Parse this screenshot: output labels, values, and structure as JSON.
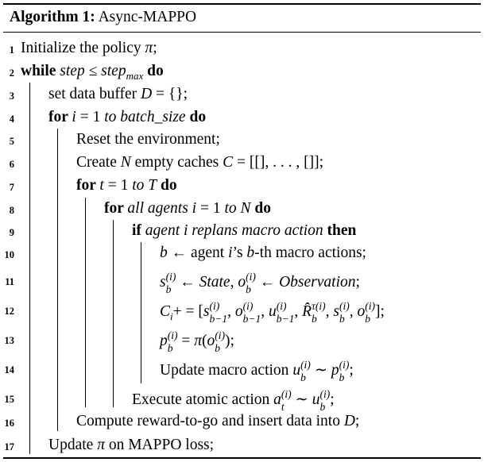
{
  "algorithm": {
    "label": "Algorithm 1:",
    "name": "Async-MAPPO"
  },
  "lines": [
    {
      "num": "1",
      "parts": [
        {
          "t": "Initialize the policy "
        },
        {
          "t": "π",
          "s": "it"
        },
        {
          "t": ";"
        }
      ]
    },
    {
      "num": "2",
      "parts": [
        {
          "t": "while ",
          "s": "kw"
        },
        {
          "t": "step ≤ step",
          "s": "it"
        },
        {
          "t": "max",
          "s": "sub-it"
        },
        {
          "t": " do",
          "s": "kw"
        }
      ]
    },
    {
      "num": "3",
      "parts": [
        {
          "t": "set data buffer "
        },
        {
          "t": "D",
          "s": "it"
        },
        {
          "t": " = {};"
        }
      ]
    },
    {
      "num": "4",
      "parts": [
        {
          "t": "for ",
          "s": "kw"
        },
        {
          "t": "i",
          "s": "it"
        },
        {
          "t": " = 1 "
        },
        {
          "t": "to batch_size",
          "s": "it"
        },
        {
          "t": " do",
          "s": "kw"
        }
      ]
    },
    {
      "num": "5",
      "parts": [
        {
          "t": "Reset the environment;"
        }
      ]
    },
    {
      "num": "6",
      "parts": [
        {
          "t": "Create "
        },
        {
          "t": "N",
          "s": "it"
        },
        {
          "t": " empty caches "
        },
        {
          "t": "C",
          "s": "it"
        },
        {
          "t": " = [[], . . . , []];"
        }
      ]
    },
    {
      "num": "7",
      "parts": [
        {
          "t": "for ",
          "s": "kw"
        },
        {
          "t": "t",
          "s": "it"
        },
        {
          "t": " = 1 "
        },
        {
          "t": "to T",
          "s": "it"
        },
        {
          "t": " do",
          "s": "kw"
        }
      ]
    },
    {
      "num": "8",
      "parts": [
        {
          "t": "for ",
          "s": "kw"
        },
        {
          "t": "all agents i",
          "s": "it"
        },
        {
          "t": " = 1 "
        },
        {
          "t": "to N",
          "s": "it"
        },
        {
          "t": " do",
          "s": "kw"
        }
      ]
    },
    {
      "num": "9",
      "parts": [
        {
          "t": "if ",
          "s": "kw"
        },
        {
          "t": "agent i replans macro action",
          "s": "it"
        },
        {
          "t": " then",
          "s": "kw"
        }
      ]
    },
    {
      "num": "10",
      "parts": [
        {
          "t": "b",
          "s": "it"
        },
        {
          "t": " ← agent "
        },
        {
          "t": "i",
          "s": "it"
        },
        {
          "t": "’s "
        },
        {
          "t": "b",
          "s": "it"
        },
        {
          "t": "-th macro actions;"
        }
      ]
    },
    {
      "num": "11",
      "parts": [
        {
          "t": "s",
          "s": "it"
        },
        {
          "st": [
            "(i)",
            "b"
          ]
        },
        {
          "t": " ← "
        },
        {
          "t": "State",
          "s": "it"
        },
        {
          "t": ", "
        },
        {
          "t": "o",
          "s": "it"
        },
        {
          "st": [
            "(i)",
            "b"
          ]
        },
        {
          "t": " ← "
        },
        {
          "t": "Observation",
          "s": "it"
        },
        {
          "t": ";"
        }
      ]
    },
    {
      "num": "12",
      "parts": [
        {
          "t": "C",
          "s": "it"
        },
        {
          "t": "i",
          "s": "sub-it"
        },
        {
          "t": "+ = ["
        },
        {
          "t": "s",
          "s": "it"
        },
        {
          "st": [
            "(i)",
            "b−1"
          ]
        },
        {
          "t": ", "
        },
        {
          "t": "o",
          "s": "it"
        },
        {
          "st": [
            "(i)",
            "b−1"
          ]
        },
        {
          "t": ", "
        },
        {
          "t": "u",
          "s": "it"
        },
        {
          "st": [
            "(i)",
            "b−1"
          ]
        },
        {
          "t": ", "
        },
        {
          "t": "R̂",
          "s": "it"
        },
        {
          "st": [
            "τ(i)",
            "b"
          ]
        },
        {
          "t": ", "
        },
        {
          "t": "s",
          "s": "it"
        },
        {
          "st": [
            "(i)",
            "b"
          ]
        },
        {
          "t": ", "
        },
        {
          "t": "o",
          "s": "it"
        },
        {
          "st": [
            "(i)",
            "b"
          ]
        },
        {
          "t": "];"
        }
      ]
    },
    {
      "num": "13",
      "parts": [
        {
          "t": "p",
          "s": "it"
        },
        {
          "st": [
            "(i)",
            "b"
          ]
        },
        {
          "t": " = "
        },
        {
          "t": "π",
          "s": "it"
        },
        {
          "t": "("
        },
        {
          "t": "o",
          "s": "it"
        },
        {
          "st": [
            "(i)",
            "b"
          ]
        },
        {
          "t": ");"
        }
      ]
    },
    {
      "num": "14",
      "parts": [
        {
          "t": "Update macro action "
        },
        {
          "t": "u",
          "s": "it"
        },
        {
          "st": [
            "(i)",
            "b"
          ]
        },
        {
          "t": " ∼ "
        },
        {
          "t": "p",
          "s": "it"
        },
        {
          "st": [
            "(i)",
            "b"
          ]
        },
        {
          "t": ";"
        }
      ]
    },
    {
      "num": "15",
      "parts": [
        {
          "t": "Execute atomic action "
        },
        {
          "t": "a",
          "s": "it"
        },
        {
          "st": [
            "(i)",
            "t"
          ]
        },
        {
          "t": " ∼ "
        },
        {
          "t": "u",
          "s": "it"
        },
        {
          "st": [
            "(i)",
            "b"
          ]
        },
        {
          "t": ";"
        }
      ]
    },
    {
      "num": "16",
      "parts": [
        {
          "t": "Compute reward-to-go and insert data into "
        },
        {
          "t": "D",
          "s": "it"
        },
        {
          "t": ";"
        }
      ]
    },
    {
      "num": "17",
      "parts": [
        {
          "t": "Update "
        },
        {
          "t": "π",
          "s": "it"
        },
        {
          "t": " on MAPPO loss;"
        }
      ]
    }
  ]
}
